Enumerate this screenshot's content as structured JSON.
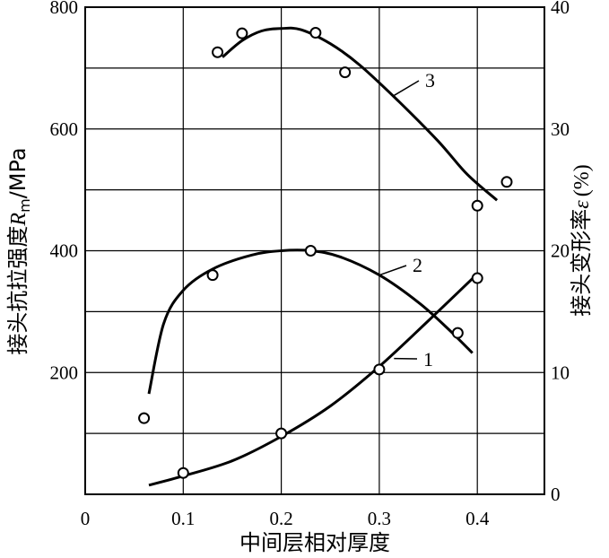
{
  "chart_data": {
    "type": "scatter",
    "xlabel": "中间层相对厚度",
    "ylabel_left": "接头抗拉强度",
    "ylabel_left_symbol": "R",
    "ylabel_left_subscript": "m",
    "ylabel_left_unit": "/MPa",
    "ylabel_right": "接头变形率",
    "ylabel_right_symbol": "ε",
    "ylabel_right_unit": "(%)",
    "xlim": [
      0,
      0.45
    ],
    "ylim_left": [
      0,
      800
    ],
    "ylim_right": [
      0,
      40
    ],
    "grid": true,
    "x_ticks": [
      {
        "value": 0,
        "label": "0"
      },
      {
        "value": 0.1,
        "label": "0.1"
      },
      {
        "value": 0.2,
        "label": "0.2"
      },
      {
        "value": 0.3,
        "label": "0.3"
      },
      {
        "value": 0.4,
        "label": "0.4"
      }
    ],
    "y_left_ticks": [
      {
        "value": 200,
        "label": "200"
      },
      {
        "value": 400,
        "label": "400"
      },
      {
        "value": 600,
        "label": "600"
      },
      {
        "value": 800,
        "label": "800"
      }
    ],
    "y_left_gridlines": [
      100,
      200,
      300,
      400,
      500,
      600,
      700,
      800
    ],
    "y_right_ticks": [
      {
        "value": 0,
        "label": "0"
      },
      {
        "value": 10,
        "label": "10"
      },
      {
        "value": 20,
        "label": "20"
      },
      {
        "value": 30,
        "label": "30"
      },
      {
        "value": 40,
        "label": "40"
      }
    ],
    "series": [
      {
        "name": "1",
        "points": [
          [
            0.1,
            35
          ],
          [
            0.2,
            100
          ],
          [
            0.3,
            205
          ],
          [
            0.4,
            355
          ]
        ],
        "fit": [
          [
            0.065,
            15
          ],
          [
            0.1,
            30
          ],
          [
            0.15,
            55
          ],
          [
            0.2,
            95
          ],
          [
            0.25,
            145
          ],
          [
            0.3,
            210
          ],
          [
            0.35,
            285
          ],
          [
            0.4,
            362
          ]
        ]
      },
      {
        "name": "2",
        "points": [
          [
            0.06,
            125
          ],
          [
            0.13,
            360
          ],
          [
            0.23,
            400
          ],
          [
            0.38,
            265
          ]
        ],
        "fit": [
          [
            0.065,
            165
          ],
          [
            0.08,
            280
          ],
          [
            0.1,
            335
          ],
          [
            0.13,
            370
          ],
          [
            0.17,
            393
          ],
          [
            0.2,
            400
          ],
          [
            0.23,
            400
          ],
          [
            0.26,
            390
          ],
          [
            0.3,
            360
          ],
          [
            0.34,
            315
          ],
          [
            0.37,
            272
          ],
          [
            0.395,
            232
          ]
        ]
      },
      {
        "name": "3",
        "points": [
          [
            0.135,
            726
          ],
          [
            0.16,
            757
          ],
          [
            0.235,
            758
          ],
          [
            0.265,
            693
          ],
          [
            0.4,
            474
          ],
          [
            0.43,
            513
          ]
        ],
        "fit": [
          [
            0.14,
            718
          ],
          [
            0.16,
            745
          ],
          [
            0.18,
            761
          ],
          [
            0.2,
            765
          ],
          [
            0.22,
            763
          ],
          [
            0.25,
            740
          ],
          [
            0.28,
            705
          ],
          [
            0.32,
            645
          ],
          [
            0.36,
            580
          ],
          [
            0.39,
            525
          ],
          [
            0.42,
            483
          ]
        ]
      }
    ]
  }
}
